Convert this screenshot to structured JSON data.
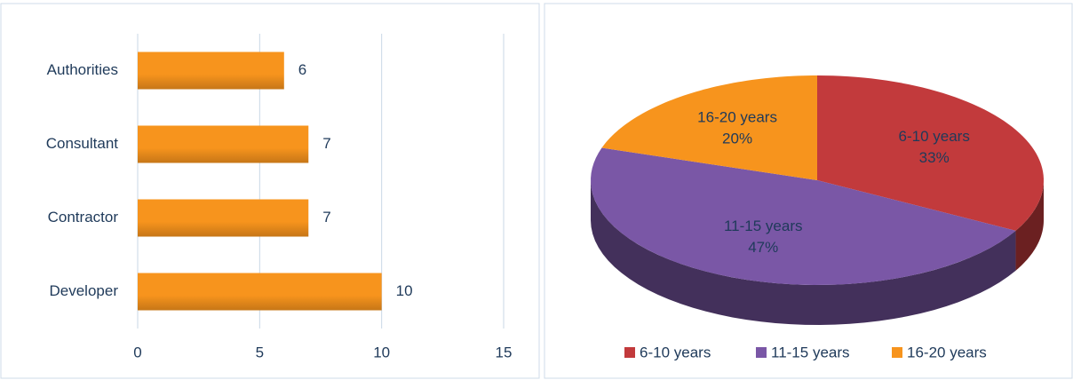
{
  "chart_data": [
    {
      "type": "bar",
      "orientation": "horizontal",
      "categories": [
        "Authorities",
        "Consultant",
        "Contractor",
        "Developer"
      ],
      "values": [
        6,
        7,
        7,
        10
      ],
      "color": "#f7941d",
      "xlim": [
        0,
        15
      ],
      "xticks": [
        0,
        5,
        10,
        15
      ],
      "grid": true
    },
    {
      "type": "pie",
      "three_d": true,
      "categories": [
        "6-10 years",
        "11-15 years",
        "16-20 years"
      ],
      "values": [
        33,
        47,
        20
      ],
      "value_labels": [
        "33%",
        "47%",
        "20%"
      ],
      "colors": [
        "#c23a3c",
        "#7a57a6",
        "#f7941d"
      ],
      "legend": "bottom"
    }
  ]
}
